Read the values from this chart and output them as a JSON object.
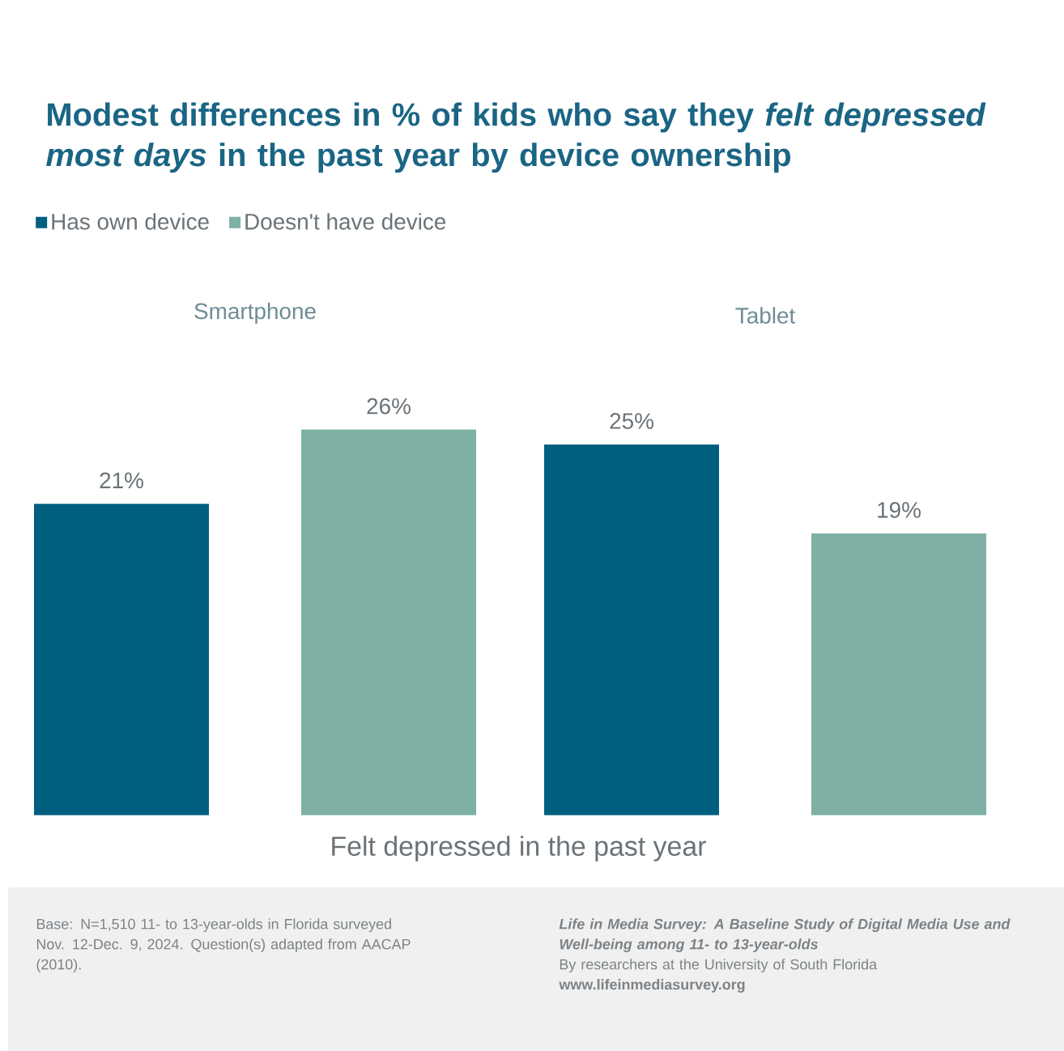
{
  "chart_data": {
    "type": "bar",
    "title": "Modest differences in % of kids who say they *felt depressed most days* in the past year by device ownership",
    "xlabel": "Felt depressed in the past year",
    "categories": [
      "Smartphone",
      "Tablet"
    ],
    "series": [
      {
        "name": "Has own device",
        "color": "#005f7f",
        "values": [
          21,
          25
        ],
        "value_labels": [
          "21%",
          "25%"
        ]
      },
      {
        "name": "Doesn't have device",
        "color": "#7eb0a5",
        "values": [
          26,
          19
        ],
        "value_labels": [
          "26%",
          "19%"
        ]
      }
    ],
    "legend": "top left",
    "annotations": [
      "Base: N=1,510 11- to 13-year-olds in Florida surveyed Nov. 12-Dec. 9, 2024. Question(s) adapted from AACAP (2010).",
      "Life in Media Survey: A Baseline Study of Digital Media Use and Well-being among 11- to 13-year-olds",
      "By researchers at the University of South Florida",
      "www.lifeinmediasurvey.org"
    ]
  }
}
